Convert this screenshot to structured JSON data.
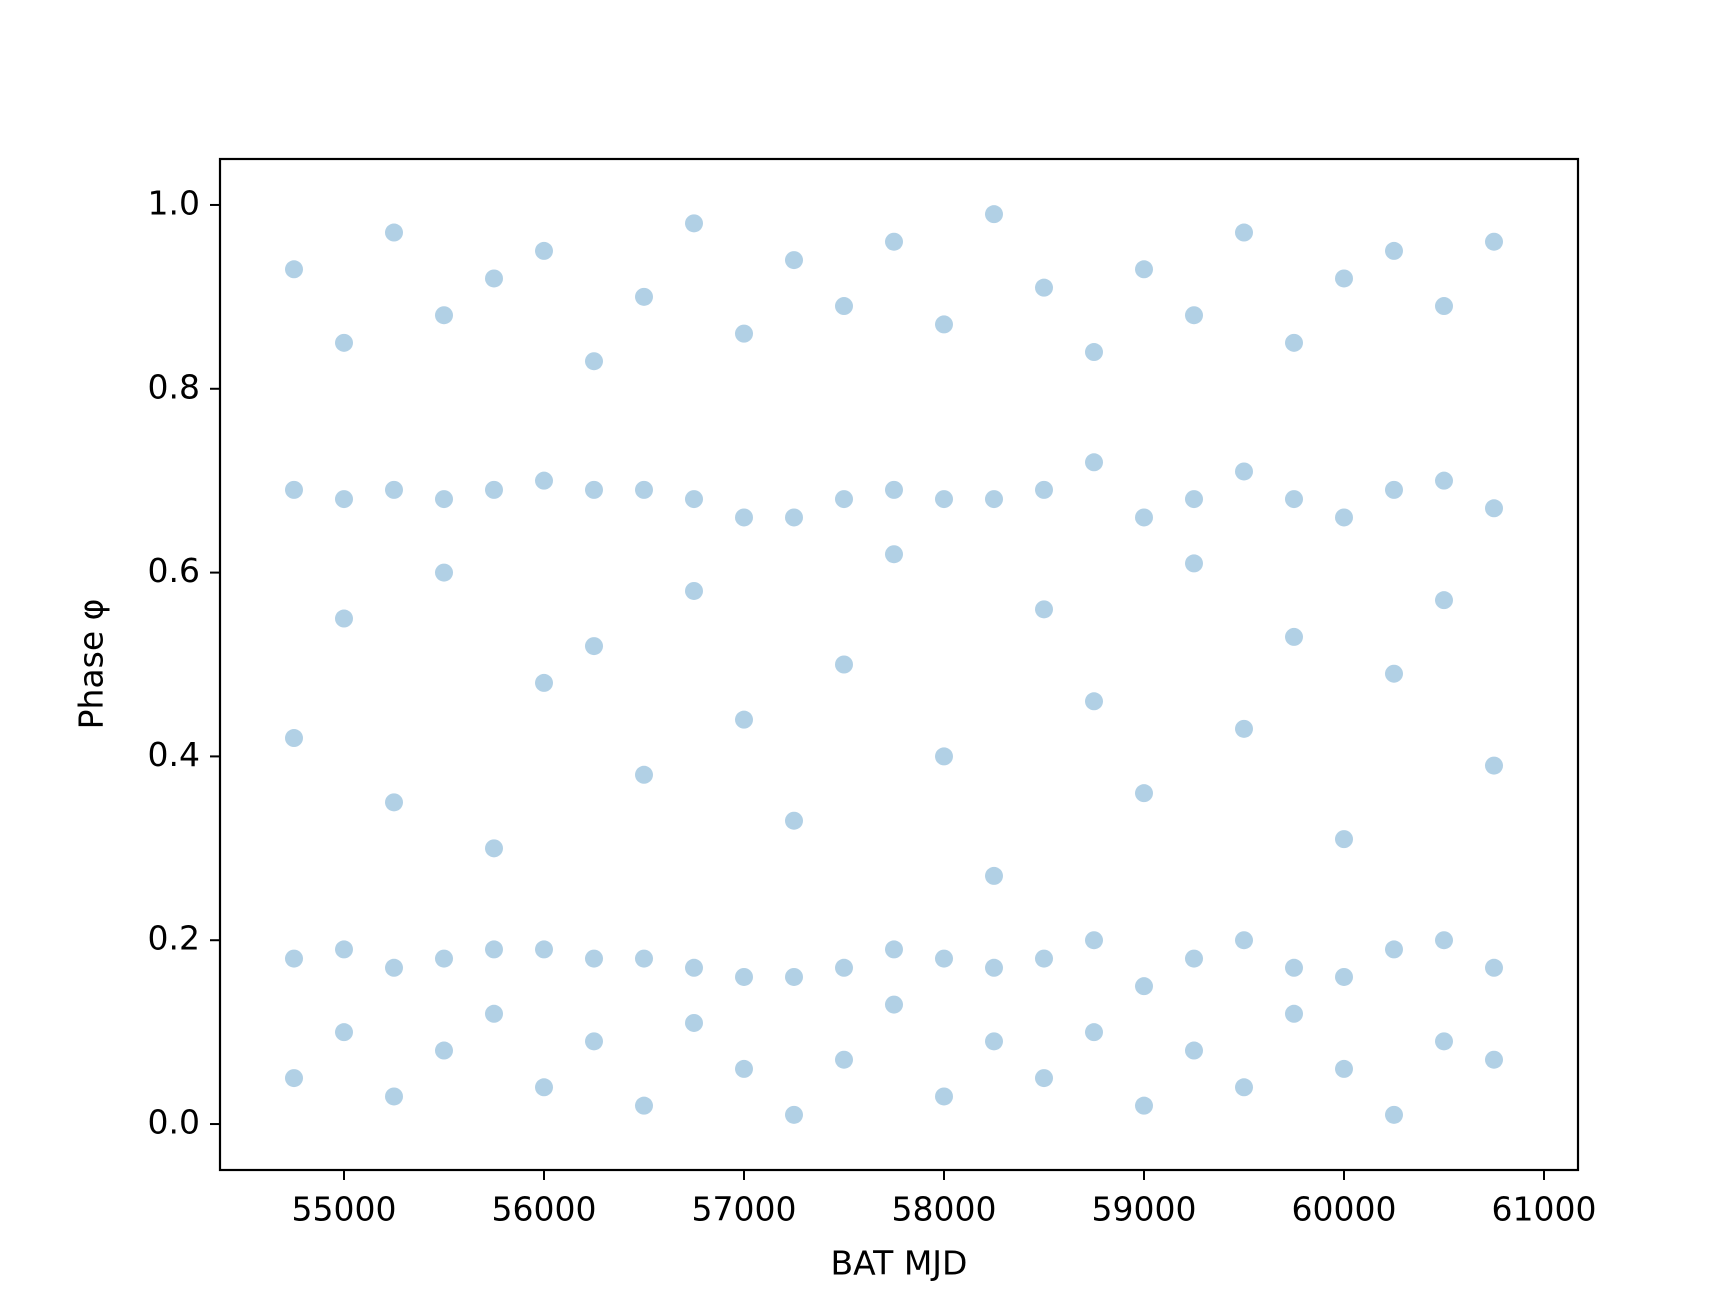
{
  "chart_data": {
    "type": "scatter",
    "x_label": "BAT MJD",
    "y_label": "Phase φ",
    "color": "#1f77b4",
    "xlim": [
      54380,
      61170
    ],
    "ylim": [
      -0.05,
      1.05
    ],
    "xticks": [
      55000,
      56000,
      57000,
      58000,
      59000,
      60000,
      61000
    ],
    "yticks": [
      {
        "value": 0,
        "label": "0.0"
      },
      0.2,
      0.4,
      0.6,
      0.8,
      {
        "value": 1,
        "label": "1.0"
      }
    ],
    "x": [
      54750,
      54750,
      54750,
      54750,
      54750,
      55000,
      55000,
      55000,
      55000,
      55000,
      55250,
      55250,
      55250,
      55250,
      55250,
      55500,
      55500,
      55500,
      55500,
      55500,
      55750,
      55750,
      55750,
      55750,
      55750,
      56000,
      56000,
      56000,
      56000,
      56000,
      56250,
      56250,
      56250,
      56250,
      56250,
      56500,
      56500,
      56500,
      56500,
      56500,
      56750,
      56750,
      56750,
      56750,
      56750,
      57000,
      57000,
      57000,
      57000,
      57000,
      57250,
      57250,
      57250,
      57250,
      57250,
      57500,
      57500,
      57500,
      57500,
      57500,
      57750,
      57750,
      57750,
      57750,
      57750,
      58000,
      58000,
      58000,
      58000,
      58000,
      58250,
      58250,
      58250,
      58250,
      58250,
      58500,
      58500,
      58500,
      58500,
      58500,
      58750,
      58750,
      58750,
      58750,
      58750,
      59000,
      59000,
      59000,
      59000,
      59000,
      59250,
      59250,
      59250,
      59250,
      59250,
      59500,
      59500,
      59500,
      59500,
      59500,
      59750,
      59750,
      59750,
      59750,
      59750,
      60000,
      60000,
      60000,
      60000,
      60000,
      60250,
      60250,
      60250,
      60250,
      60250,
      60500,
      60500,
      60500,
      60500,
      60500,
      60750,
      60750,
      60750,
      60750,
      60750
    ],
    "y": [
      0.69,
      0.18,
      0.42,
      0.93,
      0.05,
      0.68,
      0.19,
      0.55,
      0.85,
      0.1,
      0.69,
      0.17,
      0.35,
      0.97,
      0.03,
      0.68,
      0.18,
      0.6,
      0.88,
      0.08,
      0.69,
      0.19,
      0.3,
      0.92,
      0.12,
      0.7,
      0.19,
      0.48,
      0.95,
      0.04,
      0.69,
      0.18,
      0.52,
      0.83,
      0.09,
      0.69,
      0.18,
      0.38,
      0.9,
      0.02,
      0.68,
      0.17,
      0.58,
      0.98,
      0.11,
      0.66,
      0.16,
      0.44,
      0.86,
      0.06,
      0.66,
      0.16,
      0.33,
      0.94,
      0.01,
      0.68,
      0.17,
      0.5,
      0.89,
      0.07,
      0.69,
      0.19,
      0.62,
      0.96,
      0.13,
      0.68,
      0.18,
      0.4,
      0.87,
      0.03,
      0.68,
      0.17,
      0.27,
      0.99,
      0.09,
      0.69,
      0.18,
      0.56,
      0.91,
      0.05,
      0.72,
      0.2,
      0.46,
      0.84,
      0.1,
      0.66,
      0.15,
      0.36,
      0.93,
      0.02,
      0.68,
      0.18,
      0.61,
      0.88,
      0.08,
      0.71,
      0.2,
      0.43,
      0.97,
      0.04,
      0.68,
      0.17,
      0.53,
      0.85,
      0.12,
      0.66,
      0.16,
      0.31,
      0.92,
      0.06,
      0.69,
      0.19,
      0.49,
      0.95,
      0.01,
      0.7,
      0.2,
      0.57,
      0.89,
      0.09,
      0.67,
      0.17,
      0.39,
      0.96,
      0.07
    ]
  }
}
